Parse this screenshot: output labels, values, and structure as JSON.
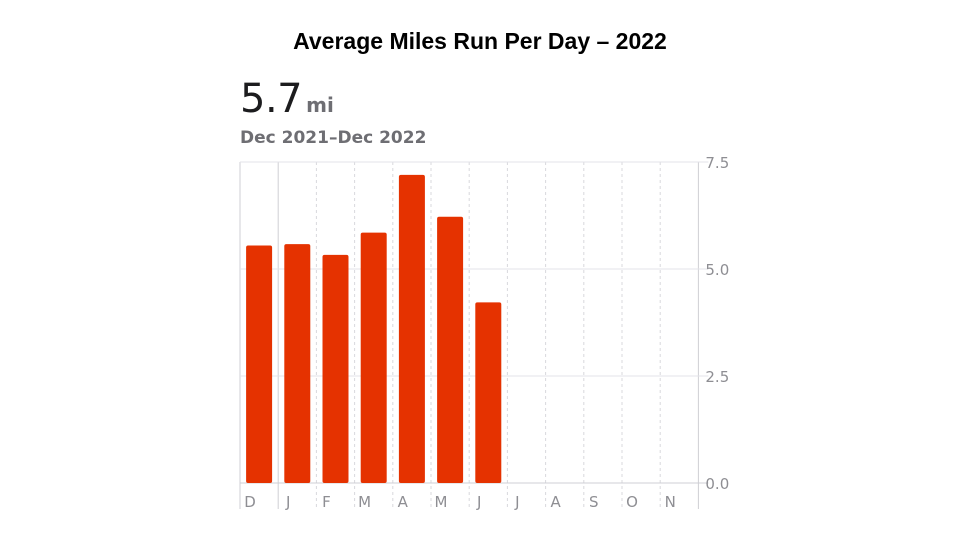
{
  "title": "Average Miles Run Per Day – 2022",
  "summary": {
    "value": "5.7",
    "unit": "mi",
    "range": "Dec 2021–Dec 2022"
  },
  "colors": {
    "bar": "#e53200",
    "grid": "#e3e3e8",
    "tick_text": "#8e8e93"
  },
  "chart_data": {
    "type": "bar",
    "categories": [
      "D",
      "J",
      "F",
      "M",
      "A",
      "M",
      "J",
      "J",
      "A",
      "S",
      "O",
      "N"
    ],
    "values": [
      5.55,
      5.58,
      5.33,
      5.85,
      7.2,
      6.22,
      4.22,
      null,
      null,
      null,
      null,
      null
    ],
    "title": "",
    "xlabel": "",
    "ylabel": "",
    "ylim": [
      0,
      7.5
    ],
    "yticks": [
      "0.0",
      "2.5",
      "5.0",
      "7.5"
    ],
    "ytick_values": [
      0,
      2.5,
      5,
      7.5
    ],
    "grid": true,
    "legend": "none"
  }
}
